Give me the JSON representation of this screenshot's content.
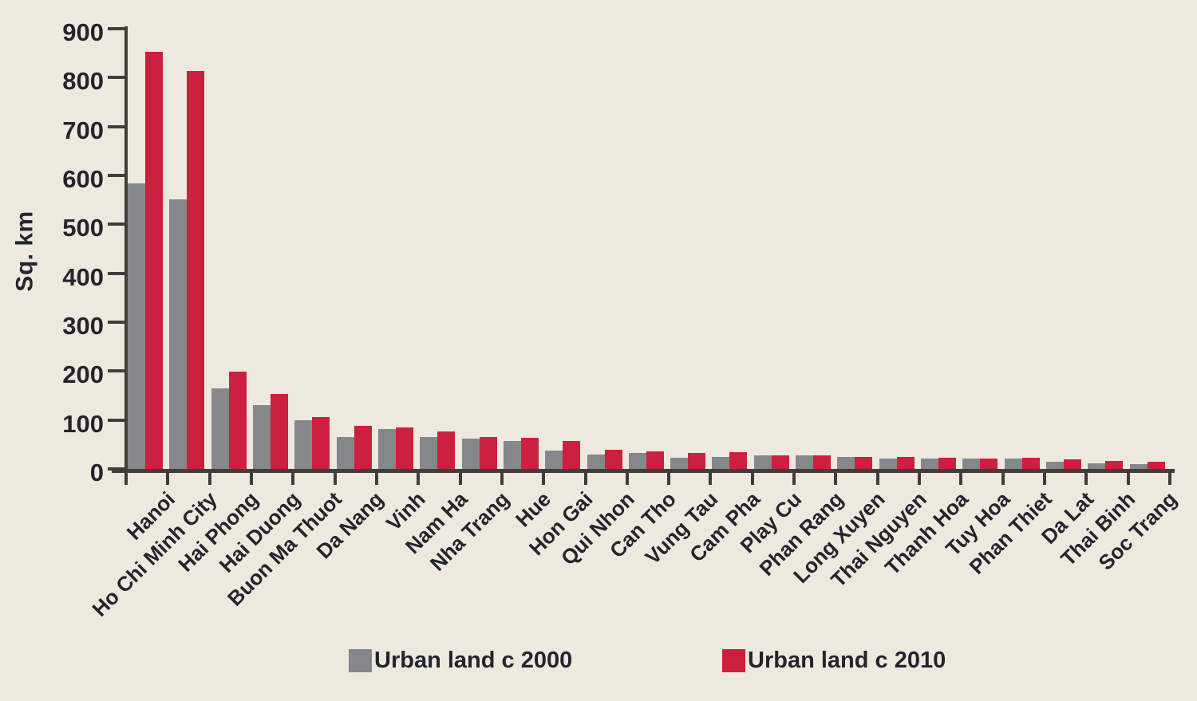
{
  "chart_data": {
    "type": "bar",
    "title": "",
    "xlabel": "",
    "ylabel": "Sq. km",
    "ylim": [
      0,
      900
    ],
    "yticks": [
      0,
      100,
      200,
      300,
      400,
      500,
      600,
      700,
      800,
      900
    ],
    "grid": false,
    "legend_position": "bottom",
    "categories": [
      "Hanoi",
      "Ho Chi Minh City",
      "Hai Phong",
      "Hai Duong",
      "Buon Ma Thuot",
      "Da Nang",
      "Vinh",
      "Nam Ha",
      "Nha Trang",
      "Hue",
      "Hon Gai",
      "Qui Nhon",
      "Can Tho",
      "Vung Tau",
      "Cam Pha",
      "Play Cu",
      "Phan Rang",
      "Long Xuyen",
      "Thai Nguyen",
      "Thanh Hoa",
      "Tuy Hoa",
      "Phan Thiet",
      "Da Lat",
      "Thai Binh",
      "Soc Trang"
    ],
    "series": [
      {
        "name": "Urban land c 2000",
        "color": "#86878b",
        "values": [
          584,
          551,
          164,
          130,
          100,
          65,
          81,
          65,
          62,
          57,
          38,
          29,
          32,
          23,
          24,
          28,
          28,
          24,
          22,
          21,
          21,
          22,
          15,
          11,
          10
        ]
      },
      {
        "name": "Urban land c 2010",
        "color": "#cd203e",
        "values": [
          853,
          814,
          199,
          153,
          106,
          88,
          84,
          77,
          65,
          63,
          57,
          39,
          36,
          32,
          34,
          28,
          28,
          25,
          24,
          23,
          22,
          23,
          20,
          16,
          15
        ]
      }
    ]
  },
  "colors": {
    "background": "#eee9df",
    "axis": "#403e3a",
    "text": "#24242c",
    "bar_2000": "#86878b",
    "bar_2010": "#cd203e"
  }
}
